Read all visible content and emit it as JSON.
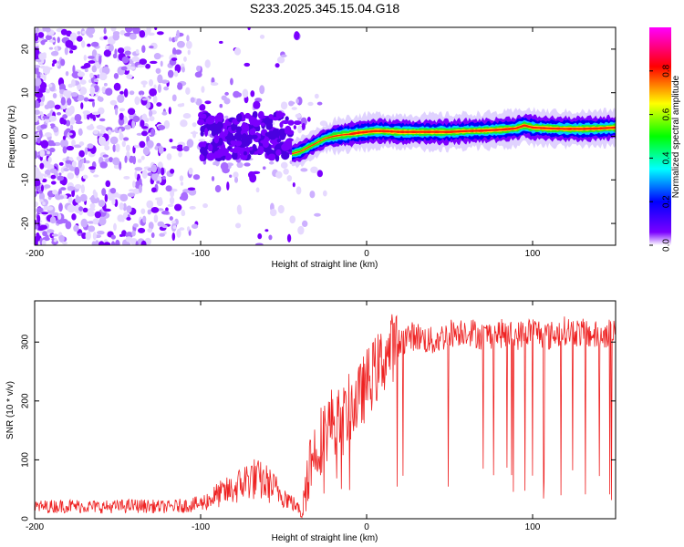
{
  "figure_title": "S233.2025.345.15.04.G18",
  "chart_data": [
    {
      "type": "heatmap",
      "title": "S233.2025.345.15.04.G18",
      "xlabel": "Height of straight line (km)",
      "ylabel": "Frequency (Hz)",
      "xlim": [
        -200,
        150
      ],
      "ylim": [
        -25,
        25
      ],
      "xticks": [
        -200,
        -100,
        0,
        100
      ],
      "yticks": [
        -20,
        -10,
        0,
        10,
        20
      ],
      "colorbar": {
        "label": "Normalized spectral amplitude",
        "range": [
          0,
          1
        ],
        "ticks": [
          0.0,
          0.2,
          0.4,
          0.6,
          0.8
        ],
        "tick_labels": [
          "0.0",
          "0.2",
          "0.4",
          "0.6",
          "0.8"
        ],
        "colormap": [
          "#ffffff",
          "#7a00ff",
          "#0000ff",
          "#00ffff",
          "#00ff00",
          "#ffff00",
          "#ff0000",
          "#ff00ff"
        ]
      },
      "dominant_frequency_trace": {
        "x": [
          -45,
          -40,
          -35,
          -30,
          -25,
          -20,
          -15,
          -10,
          -5,
          0,
          5,
          10,
          20,
          30,
          40,
          50,
          60,
          70,
          80,
          90,
          95,
          100,
          110,
          120,
          130,
          140,
          150
        ],
        "y": [
          -4,
          -3.5,
          -2.5,
          -1.5,
          -0.5,
          0,
          0.3,
          0.5,
          0.8,
          1,
          1.2,
          1.2,
          1.0,
          1.0,
          1.0,
          1.0,
          1.2,
          1.3,
          1.5,
          1.8,
          2.5,
          2,
          1.8,
          1.7,
          1.7,
          1.8,
          2
        ]
      },
      "noise_region_x": [
        -200,
        -45
      ]
    },
    {
      "type": "line",
      "xlabel": "Height of straight line (km)",
      "ylabel": "SNR (10 * v/v)",
      "xlim": [
        -200,
        150
      ],
      "ylim": [
        0,
        370
      ],
      "xticks": [
        -200,
        -100,
        0,
        100
      ],
      "yticks": [
        0,
        100,
        200,
        300
      ],
      "series": [
        {
          "name": "SNR",
          "color": "#ee2222",
          "x": [
            -200,
            -180,
            -160,
            -140,
            -120,
            -100,
            -90,
            -80,
            -70,
            -60,
            -50,
            -40,
            -35,
            -30,
            -25,
            -20,
            -15,
            -10,
            -5,
            0,
            5,
            10,
            15,
            20,
            25,
            30,
            40,
            50,
            60,
            70,
            80,
            90,
            100,
            110,
            120,
            130,
            140,
            150
          ],
          "values": [
            20,
            22,
            20,
            22,
            20,
            25,
            40,
            50,
            70,
            60,
            40,
            15,
            90,
            120,
            150,
            170,
            160,
            190,
            200,
            230,
            250,
            270,
            290,
            300,
            310,
            310,
            300,
            315,
            320,
            310,
            315,
            310,
            320,
            310,
            320,
            315,
            310,
            320
          ]
        }
      ]
    }
  ]
}
